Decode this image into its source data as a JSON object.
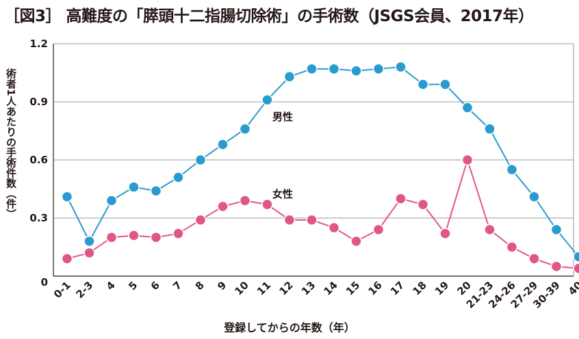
{
  "title": "［図3］ 高難度の「膵頭十二指腸切除術」の手術数（JSGS会員、2017年）",
  "ylabel": "術者1人あたりの手術件数（件）",
  "xlabel": "登録してからの年数（年）",
  "colors": {
    "male": "#2a9bcf",
    "female": "#e0568a",
    "grid": "#9a9a9a",
    "axis": "#231815"
  },
  "chart_data": {
    "type": "line",
    "title": "［図3］ 高難度の「膵頭十二指腸切除術」の手術数（JSGS会員、2017年）",
    "xlabel": "登録してからの年数（年）",
    "ylabel": "術者1人あたりの手術件数（件）",
    "ylim": [
      0,
      1.2
    ],
    "yticks": [
      0,
      0.3,
      0.6,
      0.9,
      1.2
    ],
    "ytick_labels": [
      "0",
      "0.3",
      "0.6",
      "0.9",
      "1.2"
    ],
    "grid": true,
    "categories": [
      "0-1",
      "2-3",
      "4",
      "5",
      "6",
      "7",
      "8",
      "9",
      "10",
      "11",
      "12",
      "13",
      "14",
      "15",
      "16",
      "17",
      "18",
      "19",
      "20",
      "21-23",
      "24-26",
      "27-29",
      "30-39",
      "40"
    ],
    "series": [
      {
        "name": "男性",
        "values": [
          0.41,
          0.18,
          0.39,
          0.46,
          0.44,
          0.51,
          0.6,
          0.68,
          0.76,
          0.91,
          1.03,
          1.07,
          1.07,
          1.06,
          1.07,
          1.08,
          0.99,
          0.99,
          0.87,
          0.76,
          0.55,
          0.41,
          0.24,
          0.1
        ]
      },
      {
        "name": "女性",
        "values": [
          0.09,
          0.12,
          0.2,
          0.21,
          0.2,
          0.22,
          0.29,
          0.36,
          0.39,
          0.37,
          0.29,
          0.29,
          0.25,
          0.18,
          0.24,
          0.4,
          0.37,
          0.22,
          0.6,
          0.24,
          0.15,
          0.09,
          0.05,
          0.04
        ]
      }
    ]
  }
}
